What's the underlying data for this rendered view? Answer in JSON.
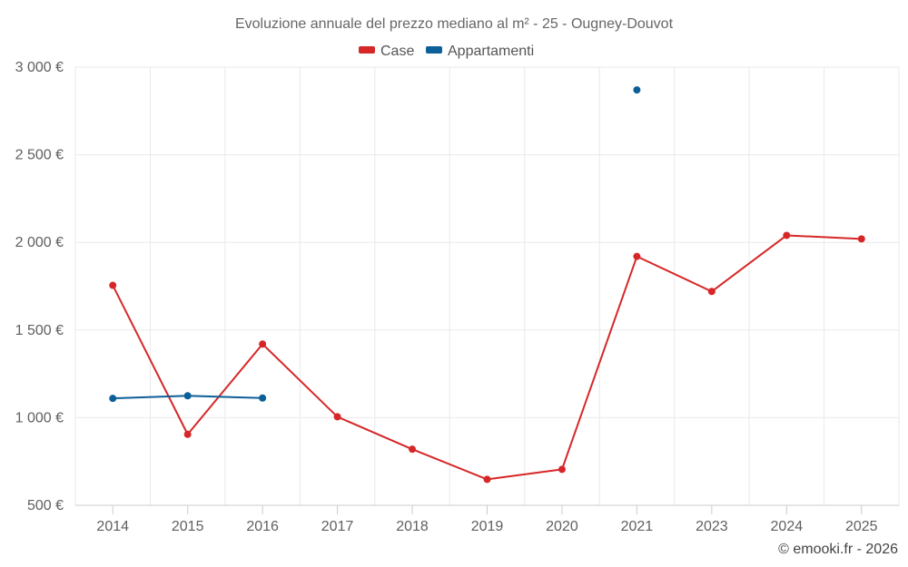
{
  "chart_data": {
    "type": "line",
    "title": "Evoluzione annuale del prezzo mediano al m² - 25 - Ougney-Douvot",
    "categories": [
      "2014",
      "2015",
      "2016",
      "2017",
      "2018",
      "2019",
      "2020",
      "2021",
      "2023",
      "2024",
      "2025"
    ],
    "series": [
      {
        "name": "Case",
        "color": "#d62728",
        "values": [
          1755,
          905,
          1420,
          1005,
          820,
          648,
          705,
          1920,
          1720,
          2040,
          2020
        ]
      },
      {
        "name": "Appartamenti",
        "color": "#0d5f97",
        "values": [
          1110,
          1125,
          1112,
          null,
          null,
          null,
          null,
          2870,
          null,
          null,
          null
        ]
      }
    ],
    "ylim": [
      500,
      3000
    ],
    "yticks": [
      500,
      1000,
      1500,
      2000,
      2500,
      3000
    ],
    "ytick_labels": [
      "500 €",
      "1 000 €",
      "1 500 €",
      "2 000 €",
      "2 500 €",
      "3 000 €"
    ],
    "xlabel": "",
    "ylabel": "",
    "grid": true,
    "legend_position": "top-center"
  },
  "credit": "© emooki.fr - 2026"
}
